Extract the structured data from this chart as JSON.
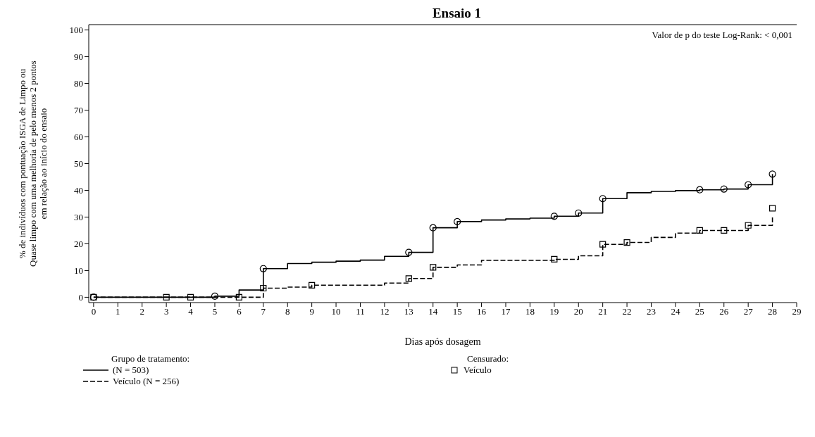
{
  "chart_data": {
    "type": "step",
    "title": "Ensaio 1",
    "xlabel": "Dias após dosagem",
    "ylabel": "% de indivíduos com pontuação ISGA de Limpo ou\nQuase limpo com uma melhoria de pelo menos 2 pontos\nem relação ao início do ensaio",
    "legend_title": "Grupo de tratamento:",
    "annotations": [
      "Valor de p do teste Log-Rank: < 0,001",
      "Censurado:"
    ],
    "xlim": [
      -0.2,
      29
    ],
    "xticks": [
      0,
      1,
      2,
      3,
      4,
      5,
      6,
      7,
      8,
      9,
      10,
      11,
      12,
      13,
      14,
      15,
      16,
      17,
      18,
      19,
      20,
      21,
      22,
      23,
      24,
      25,
      26,
      27,
      28,
      29
    ],
    "ylim": [
      -2,
      102
    ],
    "yticks": [
      0,
      10,
      20,
      30,
      40,
      50,
      60,
      70,
      80,
      90,
      100
    ],
    "grid": false,
    "legend": "bottom",
    "series": [
      {
        "name": "(N = 503)",
        "type": "step",
        "line_style": "solid",
        "color": "#000000",
        "x": [
          0,
          5,
          6,
          7,
          8,
          9,
          10,
          11,
          12,
          13,
          14,
          15,
          16,
          17,
          18,
          19,
          20,
          21,
          22,
          23,
          24,
          25,
          26,
          27,
          28
        ],
        "values": [
          0,
          0.4,
          2.7,
          10.7,
          12.6,
          13.1,
          13.5,
          13.9,
          15.3,
          16.8,
          26,
          28.3,
          28.9,
          29.3,
          29.6,
          30.3,
          31.5,
          36.9,
          39.1,
          39.6,
          39.9,
          40.2,
          40.5,
          42.1,
          46.1
        ]
      },
      {
        "name": "Veículo (N = 256)",
        "type": "step",
        "line_style": "dashed",
        "color": "#000000",
        "x": [
          0,
          7,
          8,
          9,
          12,
          13,
          14,
          15,
          16,
          19,
          20,
          21,
          22,
          23,
          24,
          25,
          27,
          28
        ],
        "values": [
          0,
          3.4,
          3.8,
          4.5,
          5.3,
          7.0,
          11.2,
          12.1,
          13.8,
          14.2,
          15.5,
          19.8,
          20.5,
          22.4,
          24.0,
          25.0,
          26.9,
          30.1
        ]
      },
      {
        "name": "Veículo",
        "type": "scatter",
        "marker": "square",
        "color": "#000000",
        "x": [
          0,
          3,
          4,
          6,
          7,
          9,
          13,
          14,
          19,
          21,
          22,
          25,
          26,
          27,
          28
        ],
        "values": [
          0,
          0,
          0,
          0,
          3.4,
          4.5,
          7.0,
          11.2,
          14.2,
          19.8,
          20.5,
          25.0,
          25.0,
          26.9,
          33.3
        ]
      },
      {
        "type": "scatter",
        "marker": "circle",
        "color": "#000000",
        "x": [
          0,
          5,
          7,
          13,
          14,
          15,
          19,
          20,
          21,
          25,
          26,
          27,
          28
        ],
        "values": [
          0,
          0.4,
          10.7,
          16.8,
          26,
          28.3,
          30.3,
          31.5,
          36.9,
          40.2,
          40.5,
          42.1,
          46.1
        ]
      }
    ]
  }
}
